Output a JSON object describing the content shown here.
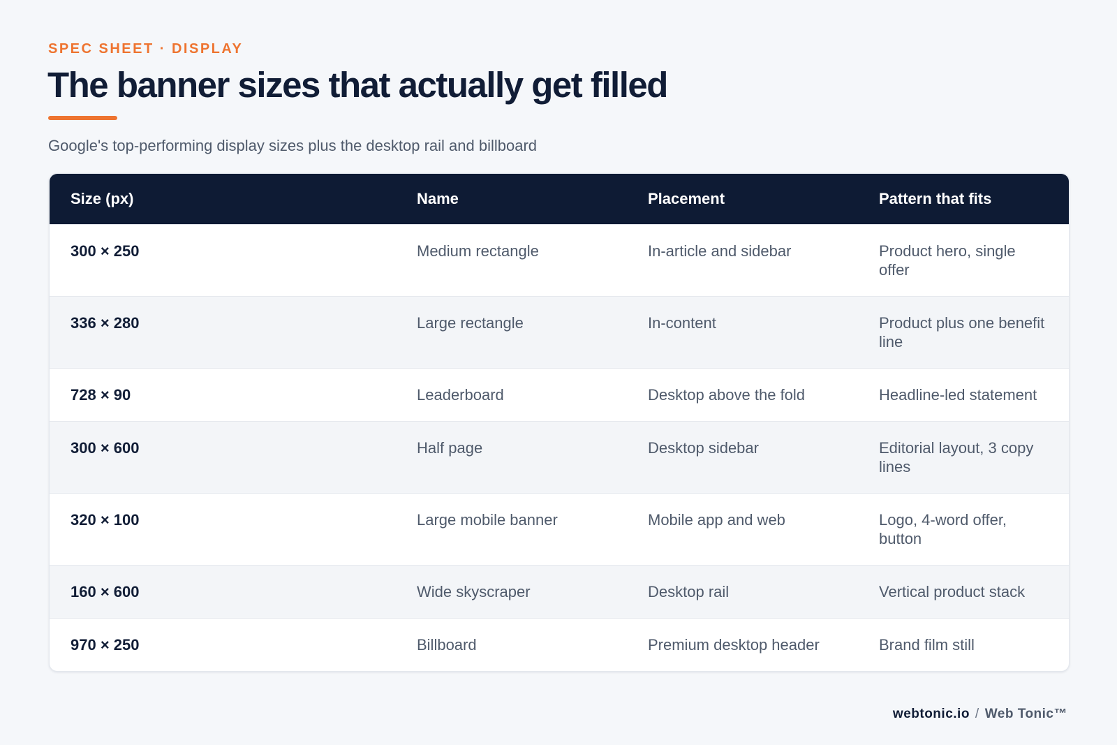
{
  "header": {
    "eyebrow": "SPEC SHEET · DISPLAY",
    "title": "The banner sizes that actually get filled",
    "subtitle": "Google's top-performing display sizes plus the desktop rail and billboard"
  },
  "table": {
    "columns": [
      "Size (px)",
      "Name",
      "Placement",
      "Pattern that fits"
    ],
    "rows": [
      [
        "300 × 250",
        "Medium rectangle",
        "In-article and sidebar",
        "Product hero, single offer"
      ],
      [
        "336 × 280",
        "Large rectangle",
        "In-content",
        "Product plus one benefit line"
      ],
      [
        "728 × 90",
        "Leaderboard",
        "Desktop above the fold",
        "Headline-led statement"
      ],
      [
        "300 × 600",
        "Half page",
        "Desktop sidebar",
        "Editorial layout, 3 copy lines"
      ],
      [
        "320 × 100",
        "Large mobile banner",
        "Mobile app and web",
        "Logo, 4-word offer, button"
      ],
      [
        "160 × 600",
        "Wide skyscraper",
        "Desktop rail",
        "Vertical product stack"
      ],
      [
        "970 × 250",
        "Billboard",
        "Premium desktop header",
        "Brand film still"
      ]
    ]
  },
  "footer": {
    "domain": "webtonic.io",
    "separator": "/",
    "brand": "Web Tonic™"
  }
}
